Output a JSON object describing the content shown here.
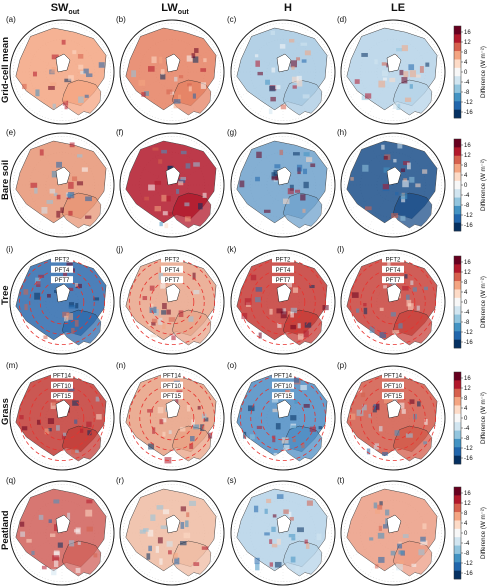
{
  "columns": [
    {
      "html_main": "SW",
      "sub": "out"
    },
    {
      "html_main": "LW",
      "sub": "out"
    },
    {
      "html_main": "H",
      "sub": ""
    },
    {
      "html_main": "LE",
      "sub": ""
    }
  ],
  "rows": [
    {
      "label": "Grid-cell mean",
      "panels": [
        "(a)",
        "(b)",
        "(c)",
        "(d)"
      ],
      "pft_labels": []
    },
    {
      "label": "Bare soil",
      "panels": [
        "(e)",
        "(f)",
        "(g)",
        "(h)"
      ],
      "pft_labels": []
    },
    {
      "label": "Tree",
      "panels": [
        "(i)",
        "(j)",
        "(k)",
        "(l)"
      ],
      "pft_labels": [
        "PFT2",
        "PFT4",
        "PFT7"
      ]
    },
    {
      "label": "Grass",
      "panels": [
        "(m)",
        "(n)",
        "(o)",
        "(p)"
      ],
      "pft_labels": [
        "PFT14",
        "PFT10",
        "PFT15"
      ]
    },
    {
      "label": "Peatland",
      "panels": [
        "(q)",
        "(r)",
        "(s)",
        "(t)"
      ],
      "pft_labels": []
    }
  ],
  "colorbar": {
    "title": "Difference (W m⁻²)",
    "ticks": [
      "16",
      "12",
      "8",
      "4",
      "0",
      "-4",
      "-8",
      "-12",
      "-16"
    ],
    "colors": [
      "#67001f",
      "#b2182b",
      "#d6604d",
      "#f4a582",
      "#fddbc7",
      "#f7f7f7",
      "#d1e5f0",
      "#92c5de",
      "#4393c3",
      "#2166ac",
      "#053061"
    ]
  },
  "panel_fields": [
    [
      "#f4a582",
      "#e58062",
      "#a7c9e2",
      "#b6d3e8"
    ],
    [
      "#e79575",
      "#b2182b",
      "#6fa2cc",
      "#1c4f8a"
    ],
    [
      "#2d6aad",
      "#e9a58a",
      "#c53a35",
      "#c8423b"
    ],
    [
      "#c23b36",
      "#e8a083",
      "#4d8cc3",
      "#d25a49"
    ],
    [
      "#d1605a",
      "#efbba3",
      "#b6d3e8",
      "#ec9d84"
    ]
  ]
}
